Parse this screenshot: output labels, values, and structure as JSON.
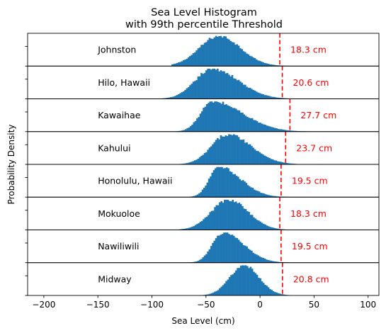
{
  "chart_data": {
    "type": "histogram",
    "title_lines": [
      "Sea Level Histogram",
      "with 99th percentile Threshold"
    ],
    "xlabel": "Sea Level (cm)",
    "ylabel": "Probability Density",
    "xlim": [
      -215,
      110
    ],
    "xticks": [
      -200,
      -150,
      -100,
      -50,
      0,
      50,
      100
    ],
    "xtick_labels": [
      "−200",
      "−150",
      "−100",
      "−50",
      "0",
      "50",
      "100"
    ],
    "bar_color": "#1f77b4",
    "threshold_color": "#ff0000",
    "grid": false,
    "panels": [
      {
        "station": "Johnston",
        "threshold": 18.3,
        "threshold_label": "18.3 cm",
        "range": [
          -82,
          42
        ],
        "peak": -38,
        "sd_left": 18,
        "sd_right": 20
      },
      {
        "station": "Hilo, Hawaii",
        "threshold": 20.6,
        "threshold_label": "20.6 cm",
        "range": [
          -100,
          48
        ],
        "peak": -44,
        "sd_left": 16,
        "sd_right": 24
      },
      {
        "station": "Kawaihae",
        "threshold": 27.7,
        "threshold_label": "27.7 cm",
        "range": [
          -80,
          50
        ],
        "peak": -44,
        "sd_left": 11,
        "sd_right": 28
      },
      {
        "station": "Kahului",
        "threshold": 23.7,
        "threshold_label": "23.7 cm",
        "range": [
          -82,
          45
        ],
        "peak": -30,
        "sd_left": 15,
        "sd_right": 22
      },
      {
        "station": "Honolulu, Hawaii",
        "threshold": 19.5,
        "threshold_label": "19.5 cm",
        "range": [
          -75,
          36
        ],
        "peak": -38,
        "sd_left": 9,
        "sd_right": 20
      },
      {
        "station": "Mokuoloe",
        "threshold": 18.3,
        "threshold_label": "18.3 cm",
        "range": [
          -86,
          38
        ],
        "peak": -29,
        "sd_left": 16,
        "sd_right": 18
      },
      {
        "station": "Nawiliwili",
        "threshold": 19.5,
        "threshold_label": "19.5 cm",
        "range": [
          -76,
          36
        ],
        "peak": -34,
        "sd_left": 10,
        "sd_right": 19
      },
      {
        "station": "Midway",
        "threshold": 20.8,
        "threshold_label": "20.8 cm",
        "range": [
          -62,
          40
        ],
        "peak": -15,
        "sd_left": 13,
        "sd_right": 14
      }
    ]
  }
}
